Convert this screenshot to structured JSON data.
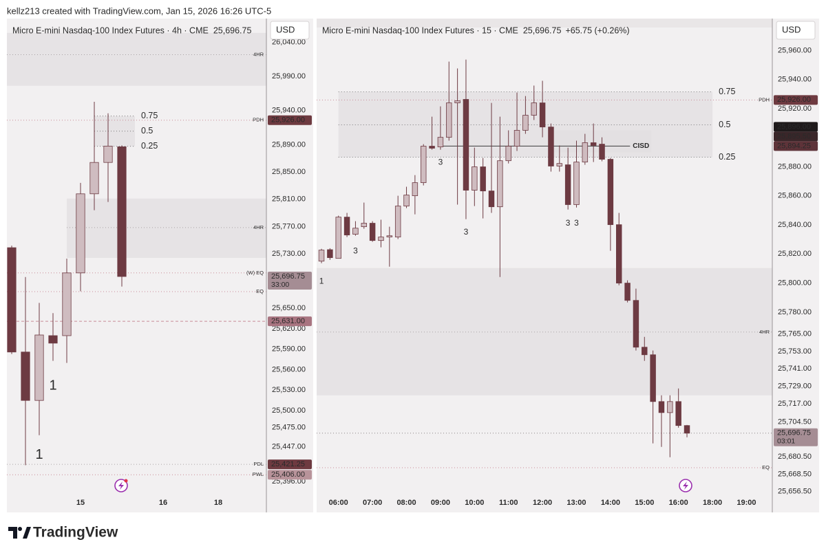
{
  "header": {
    "credit": "kellz213 created with TradingView.com, Jan 15, 2026 16:26 UTC-5"
  },
  "footer": {
    "brand": "TradingView"
  },
  "chart_data": [
    {
      "type": "candlestick",
      "title": "Micro E-mini Nasdaq-100 Index Futures · 4h · CME",
      "quote": {
        "value": 25696.75,
        "label": "25,696.75"
      },
      "currency": "USD",
      "up_color": "#cfbcc0",
      "down_color": "#6d3a42",
      "wick_color": "#6d3a42",
      "xlim": [
        -0.35,
        18.5
      ],
      "ylim": [
        25378,
        26075
      ],
      "xticks": [
        {
          "value": 5,
          "label": "15"
        },
        {
          "value": 11,
          "label": "16"
        },
        {
          "value": 15,
          "label": "18"
        }
      ],
      "yticks": [
        {
          "value": 26040,
          "label": "26,040.00"
        },
        {
          "value": 25990,
          "label": "25,990.00"
        },
        {
          "value": 25940,
          "label": "25,940.00"
        },
        {
          "value": 25890,
          "label": "25,890.00"
        },
        {
          "value": 25850,
          "label": "25,850.00"
        },
        {
          "value": 25810,
          "label": "25,810.00"
        },
        {
          "value": 25770,
          "label": "25,770.00"
        },
        {
          "value": 25730,
          "label": "25,730.00"
        },
        {
          "value": 25650,
          "label": "25,650.00"
        },
        {
          "value": 25620,
          "label": "25,620.00"
        },
        {
          "value": 25590,
          "label": "25,590.00"
        },
        {
          "value": 25560,
          "label": "25,560.00"
        },
        {
          "value": 25530,
          "label": "25,530.00"
        },
        {
          "value": 25500,
          "label": "25,500.00"
        },
        {
          "value": 25475,
          "label": "25,475.00"
        },
        {
          "value": 25447,
          "label": "25,447.00"
        },
        {
          "value": 25396,
          "label": "25,396.00"
        }
      ],
      "x": [
        0,
        1,
        2,
        3,
        4,
        5,
        6,
        7,
        8
      ],
      "open": [
        25739,
        25586,
        25515,
        25610,
        25610,
        25702,
        25818,
        25864,
        25887
      ],
      "high": [
        25742,
        25696,
        25658,
        25643,
        25723,
        25834,
        25953,
        25936,
        25889
      ],
      "low": [
        25583,
        25420,
        25464,
        25573,
        25570,
        25675,
        25794,
        25806,
        25682
      ],
      "close": [
        25586,
        25515,
        25611,
        25599,
        25702,
        25818,
        25864,
        25888,
        25696.75
      ],
      "zones": [
        {
          "from": 26054,
          "to": 25976.4
        },
        {
          "from": 25811,
          "to": 25724,
          "x0": 4
        },
        {
          "from": 25932,
          "to": 25887.6,
          "x0": 6,
          "x1": 8.95
        }
      ],
      "levels": [
        {
          "value": 26022,
          "label": "4HR",
          "style": "dotted",
          "color": "#a9a3a5"
        },
        {
          "value": 25768.5,
          "label": "4HR",
          "style": "dotted",
          "color": "#a9a3a5",
          "x0": 4
        },
        {
          "value": 25926,
          "label": "PDH",
          "style": "dotted",
          "color": "#c98a96"
        },
        {
          "value": 25702,
          "label": "(W) EQ",
          "style": "dotted",
          "color": "#c98a96"
        },
        {
          "value": 25674.6,
          "label": "EQ",
          "style": "dotted",
          "color": "#c98a96"
        },
        {
          "value": 25631,
          "style": "dashed",
          "color": "#c98a96"
        },
        {
          "value": 25421.25,
          "label": "PDL",
          "style": "dotted",
          "color": "#a9a3a5"
        },
        {
          "value": 25406,
          "label": "PWL",
          "style": "dotted",
          "color": "#c98a96"
        }
      ],
      "fib": [
        {
          "value": 25932,
          "label": "0.75"
        },
        {
          "value": 25909.8,
          "label": "0.5"
        },
        {
          "value": 25887.6,
          "label": "0.25"
        }
      ],
      "fib_range": [
        6,
        8.95
      ],
      "annotations": [
        {
          "text": "1",
          "x": 3,
          "y": 25536
        },
        {
          "text": "1",
          "x": 2,
          "y": 25435
        }
      ],
      "tags": [
        {
          "value": 25926,
          "label": "25,926.00",
          "color": "#6e3a40"
        },
        {
          "value": 25696.75,
          "label": "25,696.75",
          "countdown": "33:00",
          "color": "#a58d94"
        },
        {
          "value": 25631,
          "label": "25,631.00",
          "color": "#a87480"
        },
        {
          "value": 25421.25,
          "label": "25,421.25",
          "color": "#6e3a40"
        },
        {
          "value": 25406,
          "label": "25,406.00",
          "color": "#b8939a"
        }
      ]
    },
    {
      "type": "candlestick",
      "title": "Micro E-mini Nasdaq-100 Index Futures · 15 · CME",
      "quote": {
        "value": 25696.75,
        "label": "25,696.75"
      },
      "change": "+65.75 (+0.26%)",
      "currency": "USD",
      "up_color": "#cfbcc0",
      "down_color": "#6d3a42",
      "wick_color": "#6d3a42",
      "xlim": [
        -0.57,
        53.04
      ],
      "ylim": [
        25655,
        25982
      ],
      "xticks": [
        {
          "value": 2,
          "label": "06:00"
        },
        {
          "value": 6,
          "label": "07:00"
        },
        {
          "value": 10,
          "label": "08:00"
        },
        {
          "value": 14,
          "label": "09:00"
        },
        {
          "value": 18,
          "label": "10:00"
        },
        {
          "value": 22,
          "label": "11:00"
        },
        {
          "value": 26,
          "label": "12:00"
        },
        {
          "value": 30,
          "label": "13:00"
        },
        {
          "value": 34,
          "label": "14:00"
        },
        {
          "value": 38,
          "label": "15:00"
        },
        {
          "value": 42,
          "label": "16:00"
        },
        {
          "value": 46,
          "label": "18:00"
        },
        {
          "value": 50,
          "label": "19:00"
        }
      ],
      "yticks": [
        {
          "value": 25960,
          "label": "25,960.00"
        },
        {
          "value": 25940,
          "label": "25,940.00"
        },
        {
          "value": 25920,
          "label": "25,920.00"
        },
        {
          "value": 25880,
          "label": "25,880.00"
        },
        {
          "value": 25860,
          "label": "25,860.00"
        },
        {
          "value": 25840,
          "label": "25,840.00"
        },
        {
          "value": 25820,
          "label": "25,820.00"
        },
        {
          "value": 25800,
          "label": "25,800.00"
        },
        {
          "value": 25780,
          "label": "25,780.00"
        },
        {
          "value": 25765,
          "label": "25,765.00"
        },
        {
          "value": 25753,
          "label": "25,753.00"
        },
        {
          "value": 25741,
          "label": "25,741.00"
        },
        {
          "value": 25729,
          "label": "25,729.00"
        },
        {
          "value": 25717,
          "label": "25,717.00"
        },
        {
          "value": 25704.5,
          "label": "25,704.50"
        },
        {
          "value": 25680.5,
          "label": "25,680.50"
        },
        {
          "value": 25668.5,
          "label": "25,668.50"
        },
        {
          "value": 25656.5,
          "label": "25,656.50"
        }
      ],
      "x": [
        0,
        1,
        2,
        3,
        4,
        5,
        6,
        7,
        8,
        9,
        10,
        11,
        12,
        13,
        14,
        15,
        16,
        17,
        18,
        19,
        20,
        21,
        22,
        23,
        24,
        25,
        26,
        27,
        28,
        29,
        30,
        31,
        32,
        33,
        34,
        35,
        36,
        37,
        38,
        39,
        40,
        41,
        42,
        43
      ],
      "open": [
        25815.1,
        25823,
        25817,
        25845.4,
        25833.6,
        25838.8,
        25841.2,
        25829.3,
        25831.7,
        25831.7,
        25853,
        25860.1,
        25869.1,
        25894.2,
        25893.7,
        25900.3,
        25924,
        25926.4,
        25863.9,
        25880,
        25863.4,
        25852.5,
        25884.2,
        25894.2,
        25905.1,
        25915.5,
        25924,
        25907.4,
        25880.5,
        25881.4,
        25854,
        25883.3,
        25896.6,
        25895.6,
        25885.2,
        25840.2,
        25800,
        25788.1,
        25755.9,
        25750.7,
        25718.5,
        25710.9,
        25718.5,
        25702
      ],
      "high": [
        25823.6,
        25824,
        25846.4,
        25848.3,
        25842.6,
        25855.4,
        25842.6,
        25843.6,
        25838.8,
        25860.1,
        25866.3,
        25874.3,
        25895.6,
        25914.5,
        25921.6,
        25952.4,
        25947.7,
        25953.8,
        25893.2,
        25886.1,
        25924,
        25914.5,
        25905.1,
        25931.1,
        25928.7,
        25935.9,
        25939.2,
        25909.8,
        25894.7,
        25893.2,
        25898,
        25902.7,
        25909.8,
        25900.3,
        25886.1,
        25848.3,
        25801.9,
        25796.2,
        25763,
        25753.6,
        25722.8,
        25722.8,
        25727.5,
        25702.4
      ],
      "low": [
        25813.7,
        25816,
        25817,
        25831.7,
        25832.6,
        25837.4,
        25828.4,
        25824.6,
        25811.3,
        25830.3,
        25851.6,
        25847.3,
        25867.2,
        25891.8,
        25891.8,
        25898,
        25854,
        25844,
        25853,
        25844.5,
        25848.3,
        25804.2,
        25882.3,
        25890.9,
        25902.7,
        25912.2,
        25900.3,
        25876.7,
        25876.7,
        25850.6,
        25852,
        25881.4,
        25883.3,
        25883.8,
        25822.2,
        25798.5,
        25786.7,
        25753.6,
        25746.5,
        25689.7,
        25687.3,
        25680.2,
        25700.5,
        25693.9
      ],
      "close": [
        25822.7,
        25817.5,
        25845.4,
        25833.1,
        25837.8,
        25841.2,
        25829.3,
        25831.7,
        25832.6,
        25853,
        25860.6,
        25869.1,
        25894.2,
        25892.8,
        25900.3,
        25924,
        25925.4,
        25863.9,
        25880,
        25863.4,
        25852.5,
        25884.2,
        25894.2,
        25905.1,
        25915.5,
        25924,
        25907.4,
        25880.5,
        25882.3,
        25854,
        25883.3,
        25896.6,
        25894.7,
        25885.2,
        25840.2,
        25800,
        25788.1,
        25755.9,
        25750.7,
        25718.5,
        25710.9,
        25718.5,
        25702,
        25696.75
      ],
      "zones": [
        {
          "from": 25931.6,
          "to": 25886.6,
          "x0": 2,
          "x1": 46
        },
        {
          "from": 25905.1,
          "to": 25889.9,
          "x0": 27,
          "x1": 38.8
        },
        {
          "from": 25810.4,
          "to": 25722.8
        }
      ],
      "levels": [
        {
          "value": 25926,
          "label": "PDH",
          "style": "dotted",
          "color": "#c98a96"
        },
        {
          "value": 25766.3,
          "label": "4HR",
          "style": "dotted",
          "color": "#a9a3a5"
        },
        {
          "value": 25673,
          "label": "EQ",
          "style": "dotted",
          "color": "#c98a96"
        },
        {
          "value": 25696.75,
          "style": "dotted",
          "color": "#8a8486"
        }
      ],
      "fib": [
        {
          "value": 25931.6,
          "label": "0.75"
        },
        {
          "value": 25908.9,
          "label": "0.5"
        },
        {
          "value": 25886.6,
          "label": "0.25"
        }
      ],
      "fib_range": [
        2,
        46
      ],
      "cisd": {
        "value": 25894.25,
        "label": "CISD",
        "x0": 14,
        "x1": 36.3
      },
      "annotations": [
        {
          "text": "1",
          "x": 0,
          "y": 25801
        },
        {
          "text": "3",
          "x": 4,
          "y": 25822
        },
        {
          "text": "3",
          "x": 14,
          "y": 25883
        },
        {
          "text": "3",
          "x": 17,
          "y": 25835
        },
        {
          "text": "3",
          "x": 29,
          "y": 25841
        },
        {
          "text": "3",
          "x": 30,
          "y": 25841
        }
      ],
      "tags": [
        {
          "value": 25926,
          "label": "25,926.00",
          "color": "#6e3a40"
        },
        {
          "value": 25896,
          "label": "25,896.00",
          "color": "#1f1a1b"
        },
        {
          "value": 25895.5,
          "label": "25,895.50",
          "color": "#3a2629"
        },
        {
          "value": 25894.25,
          "label": "25,894.25",
          "color": "#5e3339"
        },
        {
          "value": 25696.75,
          "label": "25,696.75",
          "countdown": "03:01",
          "color": "#a58d94"
        }
      ]
    }
  ]
}
